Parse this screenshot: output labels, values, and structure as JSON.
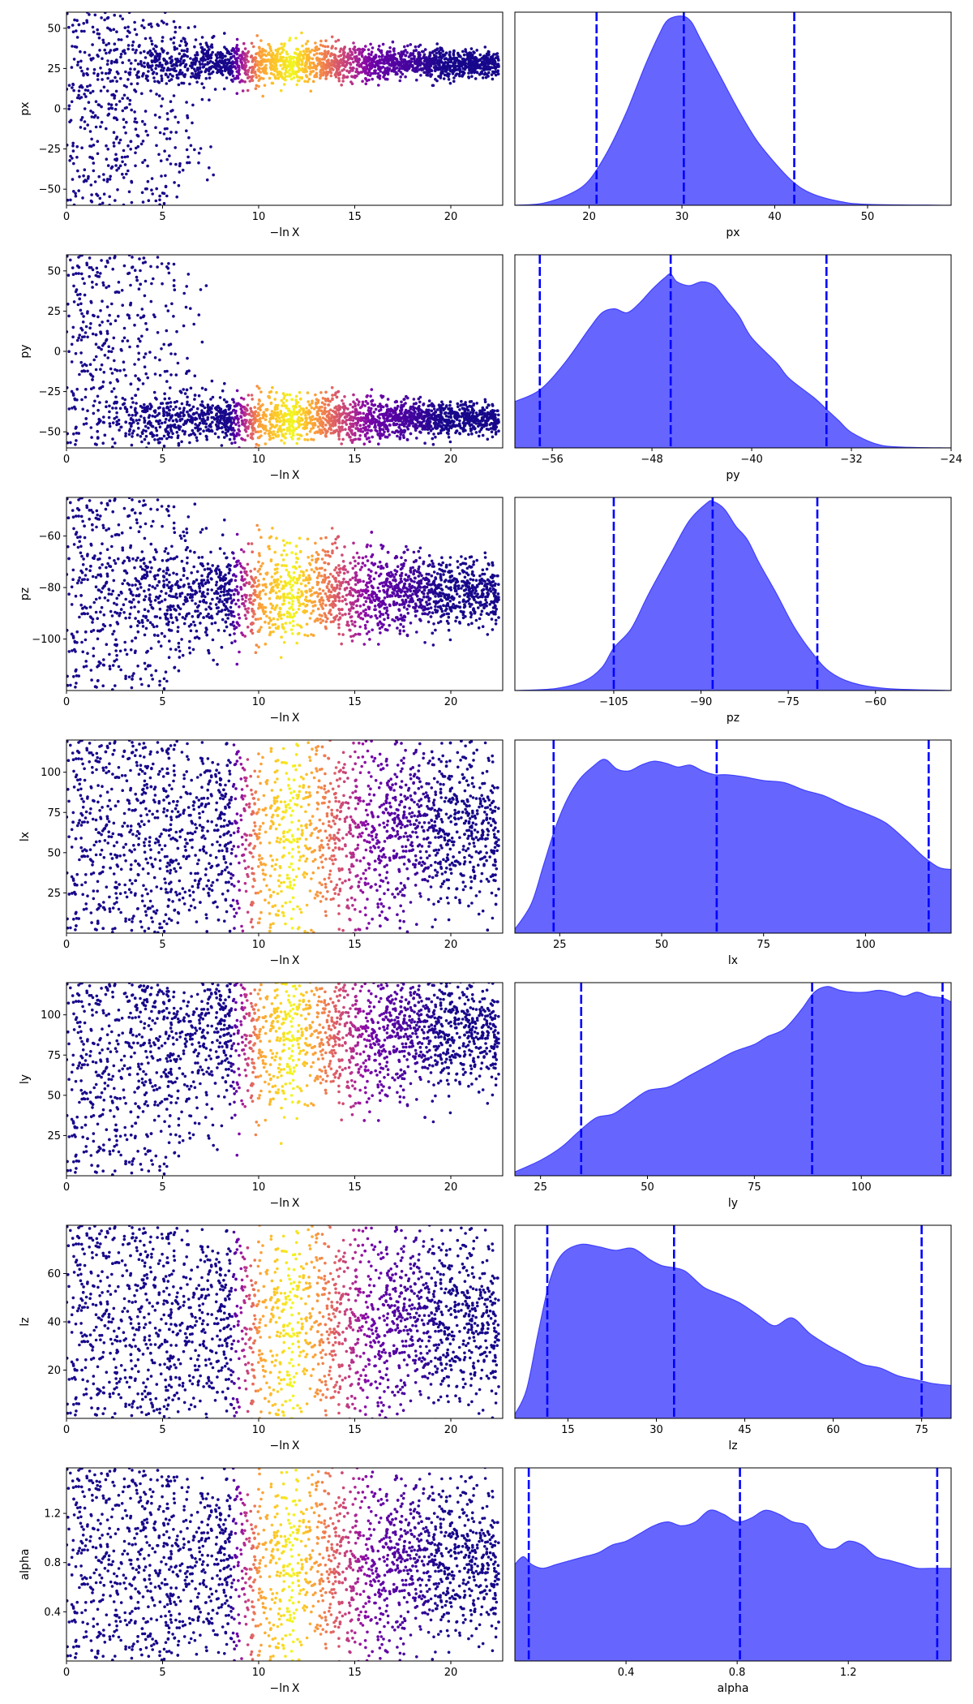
{
  "chart_data": {
    "type": "trace",
    "colormap": "plasma",
    "kde_fill_color": "#6666ff",
    "kde_edge_color": "#4040ff",
    "quantile_line_color": "#0000ff",
    "quantile_line_style": "dashed",
    "trace_x": {
      "xlabel": "−ln X",
      "xlim": [
        0,
        22.7
      ],
      "xticks": [
        0,
        5,
        10,
        15,
        20
      ],
      "bright_band": [
        10,
        13.5
      ]
    },
    "parameters": [
      {
        "name": "px",
        "trace": {
          "ylabel": "px",
          "ylim": [
            -60,
            60
          ],
          "yticks": [
            -50,
            -25,
            0,
            25,
            50
          ],
          "converge": {
            "center": 28,
            "spread": 6
          },
          "start": {
            "lo": -60,
            "hi": 60
          }
        },
        "posterior": {
          "xlabel": "px",
          "xlim": [
            12,
            59
          ],
          "xticks": [
            20,
            30,
            40,
            50
          ],
          "quantiles": [
            20.8,
            30.2,
            42.1
          ],
          "density": [
            [
              12,
              0
            ],
            [
              15,
              0.01
            ],
            [
              18,
              0.06
            ],
            [
              20,
              0.13
            ],
            [
              22,
              0.28
            ],
            [
              24,
              0.48
            ],
            [
              26,
              0.72
            ],
            [
              27.5,
              0.88
            ],
            [
              28.5,
              0.96
            ],
            [
              30,
              0.98
            ],
            [
              31,
              0.95
            ],
            [
              32,
              0.86
            ],
            [
              34,
              0.68
            ],
            [
              36,
              0.5
            ],
            [
              38,
              0.34
            ],
            [
              40,
              0.22
            ],
            [
              42,
              0.12
            ],
            [
              44,
              0.06
            ],
            [
              47,
              0.02
            ],
            [
              50,
              0.005
            ],
            [
              59,
              0
            ]
          ]
        }
      },
      {
        "name": "py",
        "trace": {
          "ylabel": "py",
          "ylim": [
            -60,
            60
          ],
          "yticks": [
            -50,
            -25,
            0,
            25,
            50
          ],
          "converge": {
            "center": -42,
            "spread": 7
          },
          "start": {
            "lo": -60,
            "hi": 60
          }
        },
        "posterior": {
          "xlabel": "py",
          "xlim": [
            -59,
            -24
          ],
          "xticks": [
            -56,
            -48,
            -40,
            -32,
            -24
          ],
          "quantiles": [
            -57,
            -46.5,
            -34
          ],
          "density": [
            [
              -59,
              0.24
            ],
            [
              -57,
              0.3
            ],
            [
              -55,
              0.44
            ],
            [
              -53,
              0.62
            ],
            [
              -52,
              0.7
            ],
            [
              -51,
              0.72
            ],
            [
              -50,
              0.7
            ],
            [
              -49,
              0.75
            ],
            [
              -48,
              0.82
            ],
            [
              -47,
              0.88
            ],
            [
              -46.5,
              0.9
            ],
            [
              -46,
              0.86
            ],
            [
              -45,
              0.84
            ],
            [
              -44,
              0.86
            ],
            [
              -43,
              0.84
            ],
            [
              -42,
              0.76
            ],
            [
              -41,
              0.68
            ],
            [
              -40,
              0.57
            ],
            [
              -38,
              0.44
            ],
            [
              -37,
              0.36
            ],
            [
              -35,
              0.26
            ],
            [
              -34,
              0.2
            ],
            [
              -33,
              0.14
            ],
            [
              -32,
              0.08
            ],
            [
              -30,
              0.02
            ],
            [
              -28,
              0.004
            ],
            [
              -24,
              0
            ]
          ]
        }
      },
      {
        "name": "pz",
        "trace": {
          "ylabel": "pz",
          "ylim": [
            -120,
            -45
          ],
          "yticks": [
            -100,
            -80,
            -60
          ],
          "converge": {
            "center": -82,
            "spread": 9
          },
          "start": {
            "lo": -120,
            "hi": -45
          }
        },
        "posterior": {
          "xlabel": "pz",
          "xlim": [
            -122,
            -47
          ],
          "xticks": [
            -105,
            -90,
            -75,
            -60
          ],
          "quantiles": [
            -105,
            -88,
            -70
          ],
          "density": [
            [
              -122,
              0
            ],
            [
              -115,
              0.01
            ],
            [
              -110,
              0.05
            ],
            [
              -107,
              0.12
            ],
            [
              -105,
              0.22
            ],
            [
              -102,
              0.32
            ],
            [
              -99,
              0.5
            ],
            [
              -95,
              0.72
            ],
            [
              -92,
              0.88
            ],
            [
              -89,
              0.97
            ],
            [
              -88,
              0.98
            ],
            [
              -86,
              0.94
            ],
            [
              -84,
              0.85
            ],
            [
              -82,
              0.78
            ],
            [
              -80,
              0.66
            ],
            [
              -77,
              0.5
            ],
            [
              -74,
              0.33
            ],
            [
              -71,
              0.2
            ],
            [
              -68,
              0.1
            ],
            [
              -64,
              0.04
            ],
            [
              -58,
              0.01
            ],
            [
              -47,
              0
            ]
          ]
        }
      },
      {
        "name": "lx",
        "trace": {
          "ylabel": "lx",
          "ylim": [
            0,
            120
          ],
          "yticks": [
            25,
            50,
            75,
            100
          ],
          "converge": {
            "center": 65,
            "spread": 35
          },
          "start": {
            "lo": 0,
            "hi": 120
          }
        },
        "posterior": {
          "xlabel": "lx",
          "xlim": [
            14,
            121
          ],
          "xticks": [
            25,
            50,
            75,
            100
          ],
          "quantiles": [
            23.5,
            63.5,
            115.5
          ],
          "density": [
            [
              14,
              0.02
            ],
            [
              18,
              0.15
            ],
            [
              21,
              0.35
            ],
            [
              24,
              0.55
            ],
            [
              27,
              0.7
            ],
            [
              30,
              0.8
            ],
            [
              33,
              0.86
            ],
            [
              36,
              0.9
            ],
            [
              39,
              0.85
            ],
            [
              42,
              0.84
            ],
            [
              45,
              0.87
            ],
            [
              48,
              0.89
            ],
            [
              51,
              0.88
            ],
            [
              54,
              0.86
            ],
            [
              57,
              0.87
            ],
            [
              60,
              0.84
            ],
            [
              63,
              0.82
            ],
            [
              66,
              0.82
            ],
            [
              70,
              0.81
            ],
            [
              75,
              0.79
            ],
            [
              80,
              0.78
            ],
            [
              85,
              0.74
            ],
            [
              90,
              0.71
            ],
            [
              95,
              0.66
            ],
            [
              100,
              0.62
            ],
            [
              105,
              0.57
            ],
            [
              110,
              0.48
            ],
            [
              114,
              0.4
            ],
            [
              118,
              0.34
            ],
            [
              121,
              0.33
            ]
          ]
        }
      },
      {
        "name": "ly",
        "trace": {
          "ylabel": "ly",
          "ylim": [
            0,
            120
          ],
          "yticks": [
            25,
            50,
            75,
            100
          ],
          "converge": {
            "center": 90,
            "spread": 25
          },
          "start": {
            "lo": 0,
            "hi": 120
          }
        },
        "posterior": {
          "xlabel": "ly",
          "xlim": [
            19,
            121
          ],
          "xticks": [
            25,
            50,
            75,
            100
          ],
          "quantiles": [
            34.5,
            88.5,
            119
          ],
          "density": [
            [
              19,
              0.02
            ],
            [
              25,
              0.08
            ],
            [
              30,
              0.15
            ],
            [
              34,
              0.23
            ],
            [
              38,
              0.3
            ],
            [
              42,
              0.32
            ],
            [
              46,
              0.38
            ],
            [
              50,
              0.44
            ],
            [
              55,
              0.46
            ],
            [
              60,
              0.52
            ],
            [
              65,
              0.58
            ],
            [
              70,
              0.64
            ],
            [
              75,
              0.68
            ],
            [
              78,
              0.72
            ],
            [
              82,
              0.76
            ],
            [
              86,
              0.86
            ],
            [
              89,
              0.95
            ],
            [
              92,
              0.98
            ],
            [
              95,
              0.96
            ],
            [
              98,
              0.95
            ],
            [
              101,
              0.95
            ],
            [
              104,
              0.96
            ],
            [
              107,
              0.95
            ],
            [
              110,
              0.93
            ],
            [
              113,
              0.95
            ],
            [
              116,
              0.93
            ],
            [
              119,
              0.92
            ],
            [
              121,
              0.9
            ]
          ]
        }
      },
      {
        "name": "lz",
        "trace": {
          "ylabel": "lz",
          "ylim": [
            0,
            80
          ],
          "yticks": [
            20,
            40,
            60
          ],
          "converge": {
            "center": 40,
            "spread": 25
          },
          "start": {
            "lo": 0,
            "hi": 80
          }
        },
        "posterior": {
          "xlabel": "lz",
          "xlim": [
            6,
            80
          ],
          "xticks": [
            15,
            30,
            45,
            60,
            75
          ],
          "quantiles": [
            11.5,
            33,
            75
          ],
          "density": [
            [
              6,
              0.02
            ],
            [
              8,
              0.15
            ],
            [
              10,
              0.45
            ],
            [
              12,
              0.72
            ],
            [
              14,
              0.85
            ],
            [
              17,
              0.9
            ],
            [
              20,
              0.89
            ],
            [
              23,
              0.87
            ],
            [
              26,
              0.88
            ],
            [
              29,
              0.82
            ],
            [
              31,
              0.79
            ],
            [
              33,
              0.78
            ],
            [
              35,
              0.76
            ],
            [
              38,
              0.68
            ],
            [
              41,
              0.64
            ],
            [
              44,
              0.6
            ],
            [
              47,
              0.54
            ],
            [
              50,
              0.48
            ],
            [
              53,
              0.52
            ],
            [
              56,
              0.44
            ],
            [
              59,
              0.38
            ],
            [
              62,
              0.33
            ],
            [
              65,
              0.28
            ],
            [
              68,
              0.26
            ],
            [
              71,
              0.22
            ],
            [
              74,
              0.2
            ],
            [
              77,
              0.18
            ],
            [
              80,
              0.17
            ]
          ]
        }
      },
      {
        "name": "alpha",
        "trace": {
          "ylabel": "alpha",
          "ylim": [
            0,
            1.57
          ],
          "yticks": [
            0.4,
            0.8,
            1.2
          ],
          "converge": {
            "center": 0.8,
            "spread": 0.45
          },
          "start": {
            "lo": 0,
            "hi": 1.57
          }
        },
        "posterior": {
          "xlabel": "alpha",
          "xlim": [
            0,
            1.57
          ],
          "xticks": [
            0.4,
            0.8,
            1.2
          ],
          "quantiles": [
            0.05,
            0.81,
            1.52
          ],
          "density": [
            [
              0,
              0.5
            ],
            [
              0.03,
              0.54
            ],
            [
              0.06,
              0.5
            ],
            [
              0.1,
              0.48
            ],
            [
              0.15,
              0.5
            ],
            [
              0.2,
              0.52
            ],
            [
              0.25,
              0.54
            ],
            [
              0.3,
              0.56
            ],
            [
              0.35,
              0.6
            ],
            [
              0.4,
              0.62
            ],
            [
              0.45,
              0.66
            ],
            [
              0.5,
              0.7
            ],
            [
              0.55,
              0.72
            ],
            [
              0.6,
              0.7
            ],
            [
              0.65,
              0.72
            ],
            [
              0.7,
              0.78
            ],
            [
              0.75,
              0.76
            ],
            [
              0.8,
              0.72
            ],
            [
              0.85,
              0.74
            ],
            [
              0.9,
              0.78
            ],
            [
              0.95,
              0.76
            ],
            [
              1.0,
              0.72
            ],
            [
              1.05,
              0.7
            ],
            [
              1.1,
              0.6
            ],
            [
              1.15,
              0.58
            ],
            [
              1.2,
              0.62
            ],
            [
              1.25,
              0.6
            ],
            [
              1.3,
              0.54
            ],
            [
              1.35,
              0.52
            ],
            [
              1.4,
              0.5
            ],
            [
              1.45,
              0.48
            ],
            [
              1.5,
              0.48
            ],
            [
              1.57,
              0.48
            ]
          ]
        }
      }
    ]
  }
}
